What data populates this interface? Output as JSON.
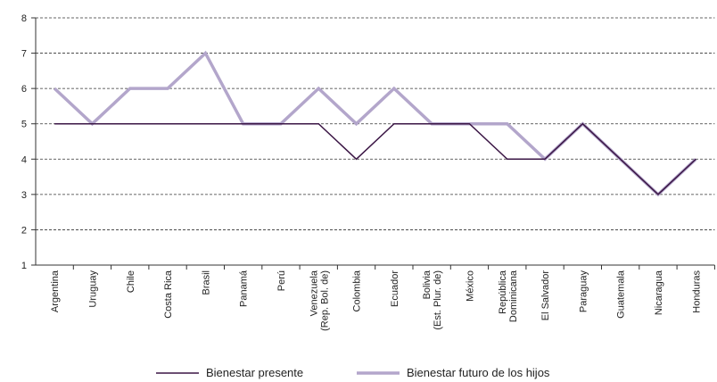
{
  "chart_data": {
    "type": "line",
    "categories": [
      "Argentina",
      "Uruguay",
      "Chile",
      "Costa Rica",
      "Brasil",
      "Panamá",
      "Perú",
      "Venezuela\n(Rep. Bol. de)",
      "Colombia",
      "Ecuador",
      "Bolivia\n(Est. Plur. de)",
      "México",
      "República\nDominicana",
      "El Salvador",
      "Paraguay",
      "Guatemala",
      "Nicaragua",
      "Honduras"
    ],
    "series": [
      {
        "name": "Bienestar presente",
        "color": "#3b1645",
        "width": 1.5,
        "values": [
          5,
          5,
          5,
          5,
          5,
          5,
          5,
          5,
          4,
          5,
          5,
          5,
          4,
          4,
          5,
          4,
          3,
          4
        ]
      },
      {
        "name": "Bienestar futuro de los hijos",
        "color": "#b3a6cb",
        "width": 3.5,
        "values": [
          6,
          5,
          6,
          6,
          7,
          5,
          5,
          6,
          5,
          6,
          5,
          5,
          5,
          4,
          5,
          4,
          3,
          4
        ]
      }
    ],
    "ylim": [
      1,
      8
    ],
    "yticks": [
      1,
      2,
      3,
      4,
      5,
      6,
      7,
      8
    ],
    "grid": true,
    "legend": "bottom"
  }
}
